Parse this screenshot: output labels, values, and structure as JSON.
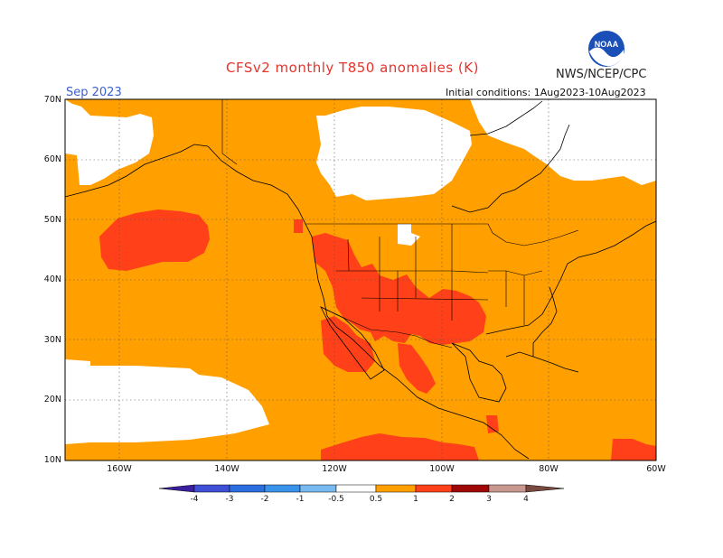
{
  "header": {
    "title": "CFSv2 monthly T850 anomalies (K)",
    "org": "NWS/NCEP/CPC",
    "month": "Sep 2023",
    "init": "Initial conditions: 1Aug2023-10Aug2023",
    "logo_text": "NOAA"
  },
  "axes": {
    "lat_labels": [
      "70N",
      "60N",
      "50N",
      "40N",
      "30N",
      "20N",
      "10N"
    ],
    "lon_labels": [
      "160W",
      "140W",
      "120W",
      "100W",
      "80W",
      "60W"
    ]
  },
  "colorbar": {
    "labels": [
      "-4",
      "-3",
      "-2",
      "-1",
      "-0.5",
      "0.5",
      "1",
      "2",
      "3",
      "4"
    ],
    "colors": [
      "#3b1fa0",
      "#3f4fd6",
      "#2a6ee0",
      "#3a93ea",
      "#78b9f0",
      "#ffffff",
      "#ff9f00",
      "#ff4018",
      "#a00808",
      "#c89890",
      "#7a4a40"
    ]
  },
  "legend_colors": {
    "anomaly_0_5_to_1": "#ff9f00",
    "anomaly_1_to_2": "#ff4018",
    "neutral": "#ffffff"
  }
}
